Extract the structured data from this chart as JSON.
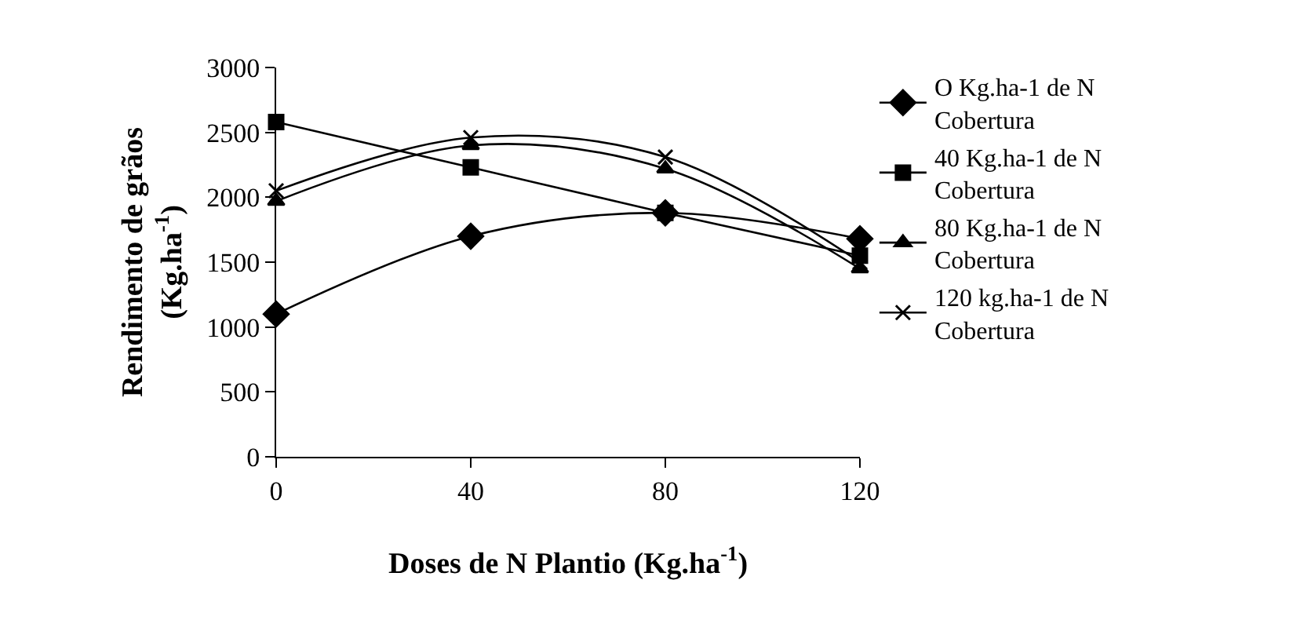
{
  "chart_data": {
    "type": "line",
    "xlabel": "Doses de N Plantio (Kg.ha$^{-1}$)",
    "ylabel": "Rendimento de grãos (Kg.ha$^{-1}$)",
    "x": [
      0,
      40,
      80,
      120
    ],
    "xlim": [
      0,
      120
    ],
    "xticks": [
      0,
      40,
      80,
      120
    ],
    "ylim": [
      0,
      3000
    ],
    "yticks": [
      0,
      500,
      1000,
      1500,
      2000,
      2500,
      3000
    ],
    "grid": false,
    "legend": "right",
    "line_style": "solid",
    "series": [
      {
        "name": "O Kg.ha-1 de N Cobertura",
        "color": "#000000",
        "marker": "diamond",
        "values": [
          1100,
          1700,
          1880,
          1680
        ]
      },
      {
        "name": "40 Kg.ha-1 de N Cobertura",
        "color": "#000000",
        "marker": "square",
        "values": [
          2580,
          2230,
          1880,
          1550
        ]
      },
      {
        "name": "80 Kg.ha-1 de N Cobertura",
        "color": "#000000",
        "marker": "triangle",
        "values": [
          1970,
          2400,
          2220,
          1450
        ]
      },
      {
        "name": "120 kg.ha-1 de N Cobertura",
        "color": "#000000",
        "marker": "cross",
        "values": [
          2050,
          2460,
          2310,
          1500
        ]
      }
    ]
  }
}
